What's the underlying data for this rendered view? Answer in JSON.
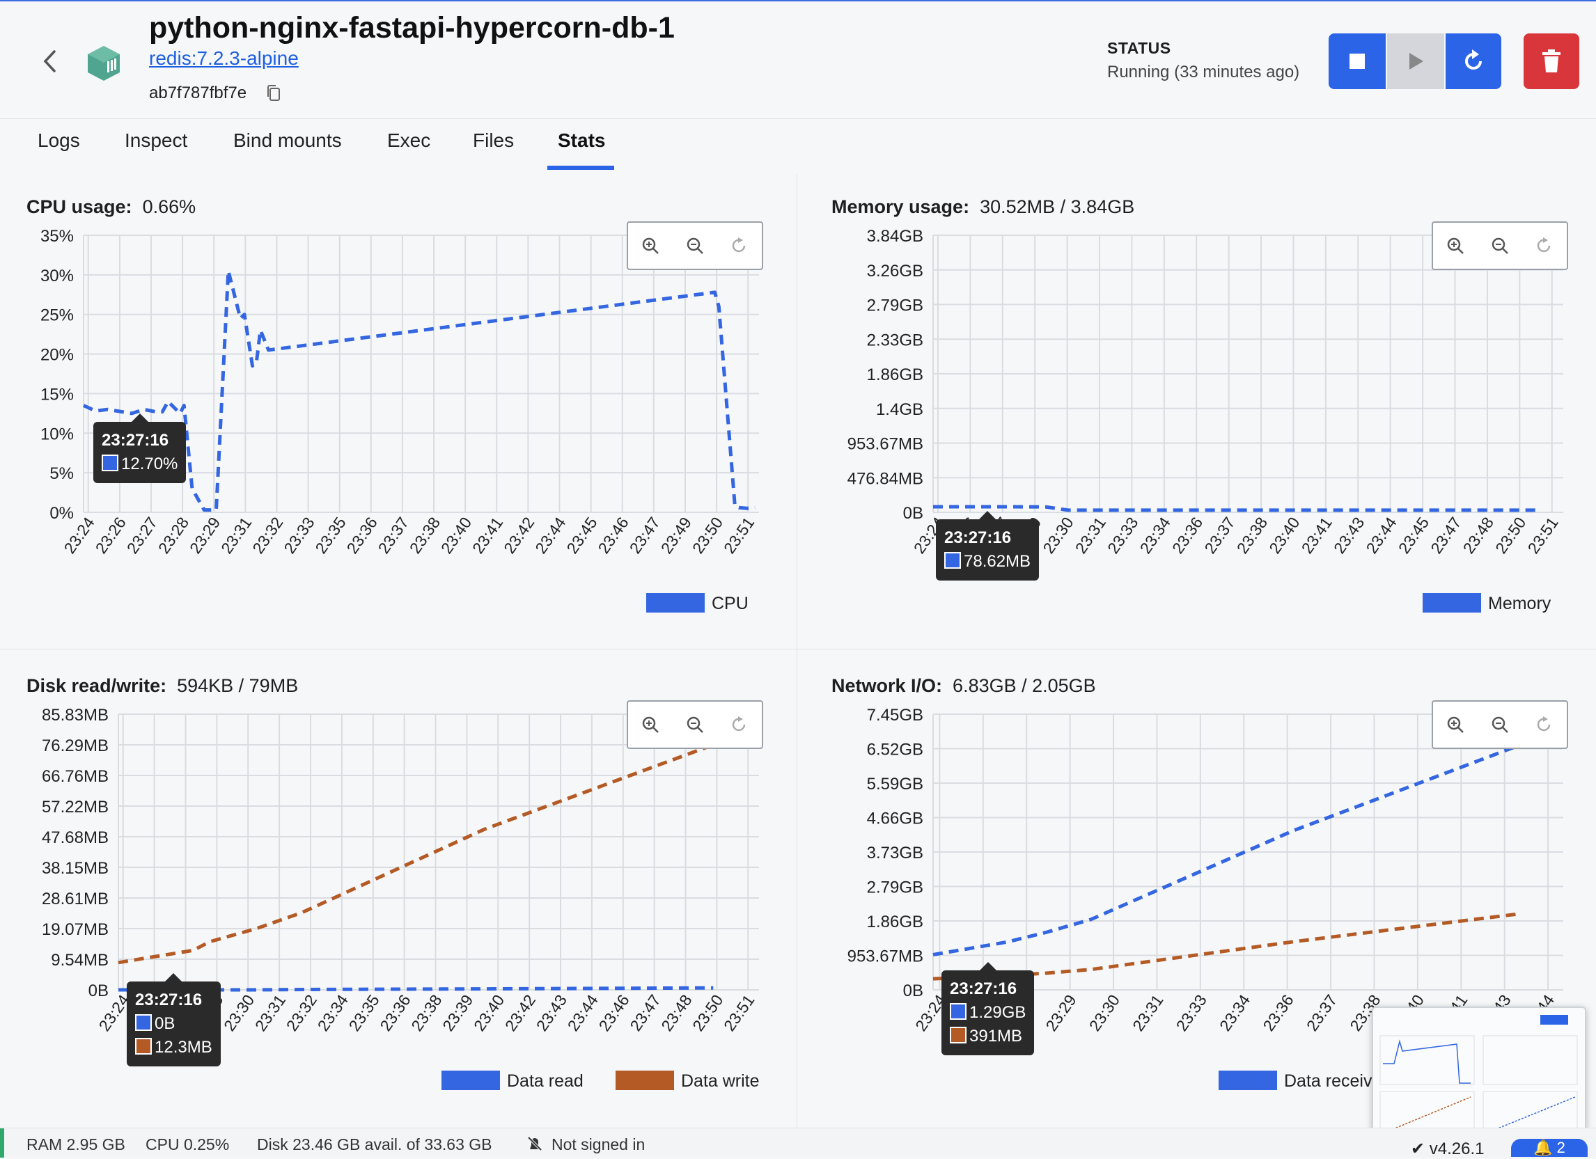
{
  "header": {
    "title": "python-nginx-fastapi-hypercorn-db-1",
    "image": "redis:7.2.3-alpine",
    "container_id": "ab7f787fbf7e",
    "status_label": "STATUS",
    "status_value": "Running (33 minutes ago)"
  },
  "tabs": [
    "Logs",
    "Inspect",
    "Bind mounts",
    "Exec",
    "Files",
    "Stats"
  ],
  "active_tab": "Stats",
  "colors": {
    "accent": "#2c64e8",
    "series_blue": "#3366e0",
    "series_orange": "#b35a25",
    "delete": "#d9363b"
  },
  "panels": {
    "cpu": {
      "title": "CPU usage:",
      "value": "0.66%",
      "yticks": [
        "35%",
        "30%",
        "25%",
        "20%",
        "15%",
        "10%",
        "5%",
        "0%"
      ],
      "xticks": [
        "23:24",
        "23:26",
        "23:27",
        "23:28",
        "23:29",
        "23:31",
        "23:32",
        "23:33",
        "23:35",
        "23:36",
        "23:37",
        "23:38",
        "23:40",
        "23:41",
        "23:42",
        "23:44",
        "23:45",
        "23:46",
        "23:47",
        "23:49",
        "23:50",
        "23:51"
      ],
      "legend": [
        "CPU"
      ],
      "tooltip": {
        "time": "23:27:16",
        "values": [
          "12.70%"
        ]
      }
    },
    "memory": {
      "title": "Memory usage:",
      "value": "30.52MB / 3.84GB",
      "yticks": [
        "3.84GB",
        "3.26GB",
        "2.79GB",
        "2.33GB",
        "1.86GB",
        "1.4GB",
        "953.67MB",
        "476.84MB",
        "0B"
      ],
      "xticks": [
        "23:24",
        "23:26",
        "23:27",
        "23:29",
        "23:30",
        "23:31",
        "23:33",
        "23:34",
        "23:36",
        "23:37",
        "23:38",
        "23:40",
        "23:41",
        "23:43",
        "23:44",
        "23:45",
        "23:47",
        "23:48",
        "23:50",
        "23:51"
      ],
      "legend": [
        "Memory"
      ],
      "tooltip": {
        "time": "23:27:16",
        "values": [
          "78.62MB"
        ]
      }
    },
    "disk": {
      "title": "Disk read/write:",
      "value": "594KB / 79MB",
      "yticks": [
        "85.83MB",
        "76.29MB",
        "66.76MB",
        "57.22MB",
        "47.68MB",
        "38.15MB",
        "28.61MB",
        "19.07MB",
        "9.54MB",
        "0B"
      ],
      "xticks": [
        "23:24",
        "23:26",
        "23:27",
        "23:28",
        "23:30",
        "23:31",
        "23:32",
        "23:34",
        "23:35",
        "23:36",
        "23:38",
        "23:39",
        "23:40",
        "23:42",
        "23:43",
        "23:44",
        "23:46",
        "23:47",
        "23:48",
        "23:50",
        "23:51"
      ],
      "legend": [
        "Data read",
        "Data write"
      ],
      "tooltip": {
        "time": "23:27:16",
        "values": [
          "0B",
          "12.3MB"
        ]
      }
    },
    "network": {
      "title": "Network I/O:",
      "value": "6.83GB / 2.05GB",
      "yticks": [
        "7.45GB",
        "6.52GB",
        "5.59GB",
        "4.66GB",
        "3.73GB",
        "2.79GB",
        "1.86GB",
        "953.67MB",
        "0B"
      ],
      "xticks": [
        "23:24",
        "23:26",
        "23:27",
        "23:29",
        "23:30",
        "23:31",
        "23:33",
        "23:34",
        "23:36",
        "23:37",
        "23:38",
        "23:40",
        "23:41",
        "23:43",
        "23:44"
      ],
      "legend": [
        "Data receiv"
      ],
      "tooltip": {
        "time": "23:27:16",
        "values": [
          "1.29GB",
          "391MB"
        ]
      }
    }
  },
  "chart_data": [
    {
      "type": "line",
      "title": "CPU usage:",
      "ylim": [
        0,
        35
      ],
      "x": [
        "23:24",
        "23:24:30",
        "23:25",
        "23:26",
        "23:26:30",
        "23:27",
        "23:27:16",
        "23:27:30",
        "23:28",
        "23:28:10",
        "23:28:30",
        "23:29",
        "23:29:30",
        "23:30",
        "23:30:30",
        "23:30:40",
        "23:31",
        "23:31:10",
        "23:31:20",
        "23:31:40",
        "23:50:10",
        "23:50:20",
        "23:51",
        "23:51:10",
        "23:51:30",
        "23:51:50"
      ],
      "series": [
        {
          "name": "CPU",
          "values": [
            13.5,
            12.8,
            13.0,
            12.5,
            13.0,
            12.7,
            12.7,
            14.0,
            12.5,
            13.5,
            3.0,
            0.3,
            0.3,
            30.5,
            24.5,
            25.0,
            18.5,
            19.0,
            23.0,
            20.5,
            27.8,
            26.0,
            0.8,
            0.6,
            0.5,
            0.6
          ]
        }
      ]
    },
    {
      "type": "line",
      "title": "Memory usage:",
      "ylim": [
        0,
        3.84
      ],
      "x": [
        "23:24",
        "23:26",
        "23:27:16",
        "23:29",
        "23:30",
        "23:33",
        "23:45",
        "23:51"
      ],
      "series": [
        {
          "name": "Memory",
          "values": [
            0.077,
            0.077,
            0.077,
            0.075,
            0.03,
            0.03,
            0.03,
            0.03
          ]
        }
      ]
    },
    {
      "type": "line",
      "title": "Disk read/write:",
      "ylim": [
        0,
        85.83
      ],
      "x": [
        "23:24",
        "23:27:16",
        "23:28",
        "23:30",
        "23:32",
        "23:40",
        "23:50"
      ],
      "series": [
        {
          "name": "Data read",
          "values": [
            0,
            0,
            0,
            0,
            0.1,
            0.3,
            0.6
          ]
        },
        {
          "name": "Data write",
          "values": [
            8.5,
            12.3,
            15,
            19,
            24,
            50,
            76.3
          ]
        }
      ]
    },
    {
      "type": "line",
      "title": "Network I/O:",
      "ylim": [
        0,
        7.45
      ],
      "x": [
        "23:24",
        "23:27:16",
        "23:29",
        "23:31",
        "23:40",
        "23:50"
      ],
      "series": [
        {
          "name": "Data receiv",
          "values": [
            0.95,
            1.29,
            1.55,
            1.9,
            4.3,
            6.6
          ]
        },
        {
          "name": "",
          "values": [
            0.3,
            0.39,
            0.45,
            0.55,
            1.3,
            2.05
          ]
        }
      ]
    }
  ],
  "statusbar": {
    "ram": "RAM 2.95 GB",
    "cpu": "CPU 0.25%",
    "disk": "Disk 23.46 GB avail. of 33.63 GB",
    "signin": "Not signed in",
    "version": "v4.26.1",
    "notifications": "2"
  }
}
